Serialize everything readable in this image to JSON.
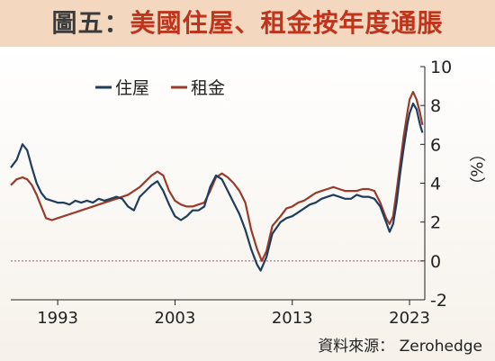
{
  "header": {
    "title_prefix": "圖五：",
    "title_main": "美國住屋、租金按年度通脹"
  },
  "footer": {
    "source": "資料來源： Zerohedge"
  },
  "colors": {
    "housing": "#1f3d5c",
    "rent": "#9a3a2a",
    "zero_line": "#b0566a",
    "banner": "#f3d7bf"
  },
  "chart_data": {
    "type": "line",
    "title": "美國住屋、租金按年度通脹",
    "xlabel": "",
    "ylabel": "（%）",
    "xlim": [
      1989.0,
      2024.3
    ],
    "ylim": [
      -2,
      10
    ],
    "x_ticks": [
      1993,
      2003,
      2013,
      2023
    ],
    "y_ticks": [
      -2,
      0,
      2,
      4,
      6,
      8,
      10
    ],
    "zero_line": true,
    "legend_position": "top-left",
    "series": [
      {
        "name": "住屋",
        "points": [
          [
            1989.0,
            4.8
          ],
          [
            1989.5,
            5.2
          ],
          [
            1990.0,
            6.0
          ],
          [
            1990.4,
            5.7
          ],
          [
            1990.8,
            4.8
          ],
          [
            1991.2,
            4.0
          ],
          [
            1991.6,
            3.5
          ],
          [
            1992.0,
            3.2
          ],
          [
            1992.5,
            3.1
          ],
          [
            1993.0,
            3.0
          ],
          [
            1993.5,
            3.0
          ],
          [
            1994.0,
            2.9
          ],
          [
            1994.5,
            3.1
          ],
          [
            1995.0,
            3.0
          ],
          [
            1995.5,
            3.1
          ],
          [
            1996.0,
            3.0
          ],
          [
            1996.5,
            3.2
          ],
          [
            1997.0,
            3.1
          ],
          [
            1997.5,
            3.2
          ],
          [
            1998.0,
            3.3
          ],
          [
            1998.5,
            3.2
          ],
          [
            1999.0,
            2.8
          ],
          [
            1999.5,
            2.6
          ],
          [
            2000.0,
            3.3
          ],
          [
            2000.5,
            3.6
          ],
          [
            2001.0,
            3.9
          ],
          [
            2001.5,
            4.1
          ],
          [
            2002.0,
            3.6
          ],
          [
            2002.5,
            2.9
          ],
          [
            2003.0,
            2.3
          ],
          [
            2003.5,
            2.1
          ],
          [
            2004.0,
            2.3
          ],
          [
            2004.5,
            2.6
          ],
          [
            2005.0,
            2.6
          ],
          [
            2005.5,
            2.8
          ],
          [
            2006.0,
            3.8
          ],
          [
            2006.5,
            4.4
          ],
          [
            2007.0,
            4.2
          ],
          [
            2007.5,
            3.6
          ],
          [
            2008.0,
            3.0
          ],
          [
            2008.5,
            2.4
          ],
          [
            2009.0,
            1.6
          ],
          [
            2009.5,
            0.6
          ],
          [
            2010.0,
            -0.2
          ],
          [
            2010.3,
            -0.5
          ],
          [
            2010.8,
            0.2
          ],
          [
            2011.3,
            1.4
          ],
          [
            2012.0,
            2.0
          ],
          [
            2012.5,
            2.2
          ],
          [
            2013.0,
            2.3
          ],
          [
            2013.5,
            2.5
          ],
          [
            2014.0,
            2.7
          ],
          [
            2014.5,
            2.9
          ],
          [
            2015.0,
            3.0
          ],
          [
            2015.5,
            3.2
          ],
          [
            2016.0,
            3.3
          ],
          [
            2016.5,
            3.4
          ],
          [
            2017.0,
            3.3
          ],
          [
            2017.5,
            3.2
          ],
          [
            2018.0,
            3.2
          ],
          [
            2018.5,
            3.4
          ],
          [
            2019.0,
            3.3
          ],
          [
            2019.5,
            3.3
          ],
          [
            2020.0,
            3.2
          ],
          [
            2020.5,
            2.8
          ],
          [
            2021.0,
            2.0
          ],
          [
            2021.3,
            1.5
          ],
          [
            2021.6,
            1.9
          ],
          [
            2021.9,
            3.0
          ],
          [
            2022.2,
            4.5
          ],
          [
            2022.5,
            5.8
          ],
          [
            2022.8,
            7.0
          ],
          [
            2023.0,
            7.6
          ],
          [
            2023.3,
            8.1
          ],
          [
            2023.6,
            7.8
          ],
          [
            2023.9,
            7.0
          ],
          [
            2024.1,
            6.6
          ]
        ]
      },
      {
        "name": "租金",
        "points": [
          [
            1989.0,
            3.9
          ],
          [
            1989.5,
            4.2
          ],
          [
            1990.0,
            4.3
          ],
          [
            1990.4,
            4.2
          ],
          [
            1990.8,
            3.9
          ],
          [
            1991.2,
            3.4
          ],
          [
            1991.6,
            2.8
          ],
          [
            1992.0,
            2.2
          ],
          [
            1992.5,
            2.1
          ],
          [
            1993.0,
            2.2
          ],
          [
            1993.5,
            2.3
          ],
          [
            1994.0,
            2.4
          ],
          [
            1994.5,
            2.5
          ],
          [
            1995.0,
            2.6
          ],
          [
            1995.5,
            2.7
          ],
          [
            1996.0,
            2.8
          ],
          [
            1996.5,
            2.9
          ],
          [
            1997.0,
            3.0
          ],
          [
            1997.5,
            3.1
          ],
          [
            1998.0,
            3.2
          ],
          [
            1998.5,
            3.3
          ],
          [
            1999.0,
            3.4
          ],
          [
            1999.5,
            3.6
          ],
          [
            2000.0,
            3.8
          ],
          [
            2000.5,
            4.1
          ],
          [
            2001.0,
            4.4
          ],
          [
            2001.5,
            4.6
          ],
          [
            2002.0,
            4.4
          ],
          [
            2002.5,
            3.6
          ],
          [
            2003.0,
            3.1
          ],
          [
            2003.5,
            2.9
          ],
          [
            2004.0,
            2.8
          ],
          [
            2004.5,
            2.8
          ],
          [
            2005.0,
            2.9
          ],
          [
            2005.5,
            3.0
          ],
          [
            2006.0,
            3.6
          ],
          [
            2006.5,
            4.3
          ],
          [
            2007.0,
            4.5
          ],
          [
            2007.5,
            4.3
          ],
          [
            2008.0,
            4.0
          ],
          [
            2008.5,
            3.6
          ],
          [
            2009.0,
            3.0
          ],
          [
            2009.5,
            1.6
          ],
          [
            2010.0,
            0.6
          ],
          [
            2010.4,
            0.0
          ],
          [
            2010.8,
            0.5
          ],
          [
            2011.3,
            1.8
          ],
          [
            2012.0,
            2.3
          ],
          [
            2012.5,
            2.7
          ],
          [
            2013.0,
            2.8
          ],
          [
            2013.5,
            3.0
          ],
          [
            2014.0,
            3.1
          ],
          [
            2014.5,
            3.3
          ],
          [
            2015.0,
            3.5
          ],
          [
            2015.5,
            3.6
          ],
          [
            2016.0,
            3.7
          ],
          [
            2016.5,
            3.8
          ],
          [
            2017.0,
            3.7
          ],
          [
            2017.5,
            3.6
          ],
          [
            2018.0,
            3.6
          ],
          [
            2018.5,
            3.6
          ],
          [
            2019.0,
            3.7
          ],
          [
            2019.5,
            3.7
          ],
          [
            2020.0,
            3.6
          ],
          [
            2020.5,
            3.0
          ],
          [
            2021.0,
            2.2
          ],
          [
            2021.3,
            1.9
          ],
          [
            2021.6,
            2.3
          ],
          [
            2021.9,
            3.6
          ],
          [
            2022.2,
            5.0
          ],
          [
            2022.5,
            6.4
          ],
          [
            2022.8,
            7.6
          ],
          [
            2023.0,
            8.3
          ],
          [
            2023.3,
            8.7
          ],
          [
            2023.6,
            8.3
          ],
          [
            2023.9,
            7.6
          ],
          [
            2024.1,
            7.0
          ]
        ]
      }
    ]
  }
}
